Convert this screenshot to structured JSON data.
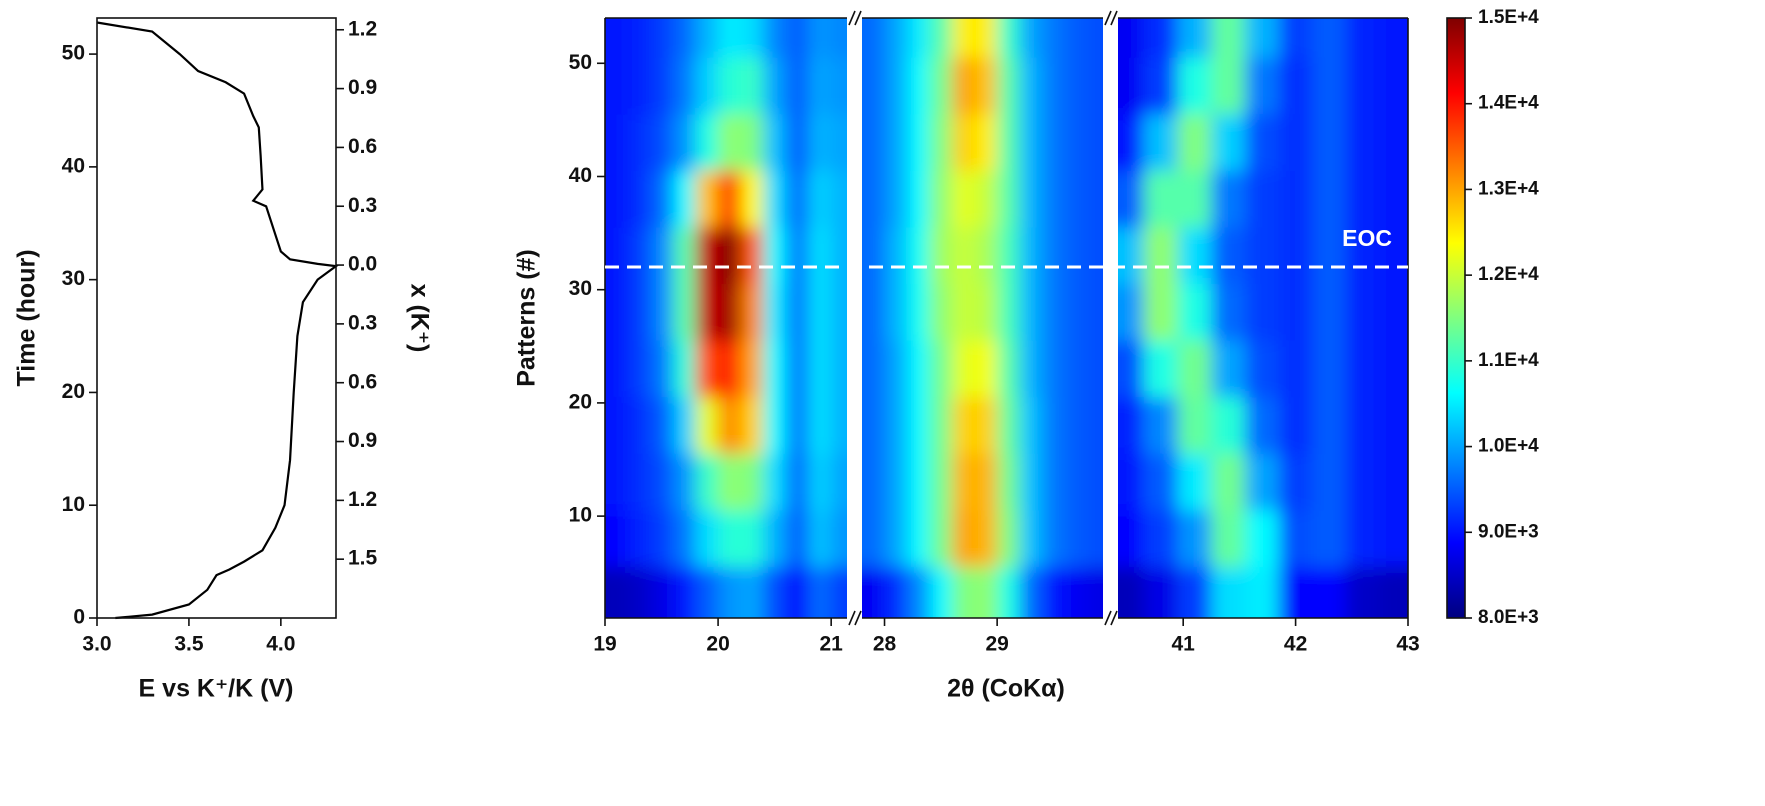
{
  "chart_data": [
    {
      "type": "line",
      "xlabel": "E vs K⁺/K (V)",
      "ylabel": "Time (hour)",
      "y2label": "x (K⁺)",
      "xlim": [
        3.0,
        4.3
      ],
      "xticks": [
        {
          "value": 3,
          "label": "3.0"
        },
        {
          "value": 3.5,
          "label": "3.5"
        },
        {
          "value": 4,
          "label": "4.0"
        }
      ],
      "ylim": [
        0,
        53.2
      ],
      "yticks": [
        0,
        10,
        20,
        30,
        40,
        50
      ],
      "y2lim": [
        -1.8,
        1.26
      ],
      "y2ticks": [
        {
          "value": 1.2,
          "label": "1.2"
        },
        {
          "value": 0.9,
          "label": "0.9"
        },
        {
          "value": 0.6,
          "label": "0.6"
        },
        {
          "value": 0.3,
          "label": "0.3"
        },
        {
          "value": 0,
          "label": "0.0"
        },
        {
          "value": -0.3,
          "label": "0.3"
        },
        {
          "value": -0.6,
          "label": "0.6"
        },
        {
          "value": -0.9,
          "label": "0.9"
        },
        {
          "value": -1.2,
          "label": "1.2"
        },
        {
          "value": -1.5,
          "label": "1.5"
        }
      ],
      "series": [
        {
          "color": "#000000",
          "x": [
            3.1,
            3.3,
            3.5,
            3.6,
            3.65,
            3.72,
            3.8,
            3.9,
            3.97,
            4.02,
            4.05,
            4.07,
            4.09,
            4.12,
            4.2,
            4.3,
            4.2,
            4.05,
            4.0,
            3.97,
            3.92,
            3.85,
            3.9,
            3.89,
            3.88,
            3.85,
            3.8,
            3.7,
            3.55,
            3.45,
            3.3,
            3.0
          ],
          "values": [
            0,
            0.3,
            1.2,
            2.5,
            3.8,
            4.3,
            5,
            6,
            8,
            10,
            14,
            20,
            25,
            28,
            30,
            31.2,
            31.4,
            31.8,
            32.5,
            34,
            36.5,
            37,
            38,
            41,
            43.5,
            44.5,
            46.5,
            47.5,
            48.5,
            50,
            52,
            52.8
          ]
        }
      ]
    },
    {
      "type": "heatmap",
      "xlabel": "2θ (CoKα)",
      "ylabel": "Patterns (#)",
      "ylim": [
        1,
        54
      ],
      "yticks": [
        10,
        20,
        30,
        40,
        50
      ],
      "y": [
        53,
        48,
        43,
        38,
        33,
        28,
        23,
        18,
        13,
        8,
        3
      ],
      "zlim": [
        8000,
        15000
      ],
      "colorbar_ticks": [
        {
          "value": 8000,
          "label": "8.0E+3"
        },
        {
          "value": 9000,
          "label": "9.0E+3"
        },
        {
          "value": 10000,
          "label": "1.0E+4"
        },
        {
          "value": 11000,
          "label": "1.1E+4"
        },
        {
          "value": 12000,
          "label": "1.2E+4"
        },
        {
          "value": 13000,
          "label": "1.3E+4"
        },
        {
          "value": 14000,
          "label": "1.4E+4"
        },
        {
          "value": 15000,
          "label": "1.5E+4"
        }
      ],
      "annotations": [
        {
          "text": "EOC",
          "y": 32
        }
      ],
      "panels": [
        {
          "xlim": [
            19,
            21.14
          ],
          "xticks": [
            19,
            20,
            21
          ],
          "x": [
            19.1,
            19.3,
            19.5,
            19.7,
            19.9,
            20.1,
            20.3,
            20.5,
            20.7,
            20.9,
            21.1
          ],
          "z": [
            [
              9000,
              9100,
              9300,
              9600,
              10100,
              10500,
              10400,
              9800,
              9500,
              9900,
              9800
            ],
            [
              9000,
              9100,
              9300,
              9700,
              10300,
              10900,
              11000,
              10000,
              9500,
              10000,
              9900
            ],
            [
              9000,
              9200,
              9400,
              9900,
              10800,
              11600,
              11500,
              10200,
              9500,
              10100,
              10000
            ],
            [
              9000,
              9200,
              9600,
              10600,
              12800,
              13800,
              12400,
              10400,
              9600,
              10300,
              10100
            ],
            [
              9000,
              9300,
              9800,
              11200,
              14500,
              15000,
              13500,
              10600,
              9700,
              10400,
              10100
            ],
            [
              9000,
              9300,
              9800,
              11200,
              14500,
              14800,
              13200,
              10500,
              9700,
              10400,
              10100
            ],
            [
              9000,
              9300,
              9700,
              10900,
              13600,
              14000,
              13000,
              10600,
              9700,
              10400,
              10100
            ],
            [
              9000,
              9200,
              9500,
              10300,
              12200,
              13200,
              12700,
              10600,
              9700,
              10400,
              10100
            ],
            [
              9000,
              9200,
              9400,
              9900,
              11000,
              11600,
              11500,
              10400,
              9600,
              10300,
              10000
            ],
            [
              8900,
              9100,
              9300,
              9700,
              10400,
              10900,
              10900,
              10100,
              9500,
              10200,
              9900
            ],
            [
              8400,
              8500,
              8700,
              9000,
              9500,
              9900,
              10000,
              9400,
              8900,
              9600,
              9300
            ]
          ]
        },
        {
          "xlim": [
            27.8,
            29.94
          ],
          "xticks": [
            28,
            29
          ],
          "x": [
            27.9,
            28.1,
            28.3,
            28.5,
            28.7,
            28.9,
            29.1,
            29.3,
            29.5,
            29.7,
            29.9
          ],
          "z": [
            [
              9600,
              10000,
              10500,
              11200,
              12500,
              12500,
              11000,
              10000,
              9700,
              9500,
              9400
            ],
            [
              9600,
              10000,
              10600,
              11400,
              13000,
              12800,
              11200,
              10100,
              9700,
              9500,
              9400
            ],
            [
              9600,
              10000,
              10600,
              11500,
              12700,
              12500,
              11200,
              10100,
              9700,
              9500,
              9400
            ],
            [
              9600,
              10000,
              10600,
              11600,
              12200,
              12000,
              11200,
              10100,
              9700,
              9500,
              9400
            ],
            [
              9600,
              10100,
              10700,
              11700,
              12000,
              11800,
              11100,
              10100,
              9700,
              9500,
              9400
            ],
            [
              9600,
              10100,
              10700,
              11600,
              12000,
              11900,
              11100,
              10100,
              9700,
              9500,
              9400
            ],
            [
              9600,
              10000,
              10600,
              11400,
              12200,
              12300,
              11200,
              10100,
              9700,
              9500,
              9400
            ],
            [
              9600,
              10000,
              10600,
              11400,
              12700,
              12700,
              11300,
              10200,
              9700,
              9500,
              9400
            ],
            [
              9600,
              10000,
              10600,
              11400,
              12900,
              12900,
              11400,
              10200,
              9700,
              9500,
              9400
            ],
            [
              9600,
              10000,
              10600,
              11400,
              13000,
              12900,
              11500,
              10200,
              9700,
              9500,
              9400
            ],
            [
              8800,
              9200,
              9800,
              10600,
              11500,
              11600,
              10800,
              9600,
              9000,
              8800,
              8700
            ]
          ]
        },
        {
          "xlim": [
            40.42,
            43
          ],
          "xticks": [
            41,
            42,
            43
          ],
          "x": [
            40.5,
            40.8,
            41.1,
            41.4,
            41.7,
            42.0,
            42.3,
            42.6,
            42.9
          ],
          "z": [
            [
              8800,
              9200,
              10100,
              11300,
              10100,
              9300,
              9500,
              9100,
              9000
            ],
            [
              8800,
              9300,
              10800,
              11300,
              9700,
              9200,
              9500,
              9100,
              9000
            ],
            [
              9000,
              10200,
              11500,
              10300,
              9400,
              9200,
              9500,
              9100,
              9000
            ],
            [
              9500,
              11200,
              11200,
              9700,
              9300,
              9200,
              9500,
              9100,
              9000
            ],
            [
              10200,
              11600,
              10400,
              9500,
              9300,
              9200,
              9500,
              9100,
              9000
            ],
            [
              9900,
              11600,
              10800,
              9600,
              9300,
              9200,
              9500,
              9100,
              9000
            ],
            [
              9400,
              10800,
              11400,
              10000,
              9400,
              9200,
              9500,
              9100,
              9000
            ],
            [
              9100,
              9800,
              11300,
              10900,
              9600,
              9200,
              9500,
              9100,
              9000
            ],
            [
              9000,
              9500,
              10500,
              11400,
              10000,
              9300,
              9500,
              9100,
              9000
            ],
            [
              8900,
              9300,
              9900,
              11300,
              10600,
              9400,
              9500,
              9100,
              9000
            ],
            [
              8400,
              8700,
              9300,
              10400,
              10500,
              8900,
              8900,
              8500,
              8400
            ]
          ]
        }
      ]
    }
  ]
}
